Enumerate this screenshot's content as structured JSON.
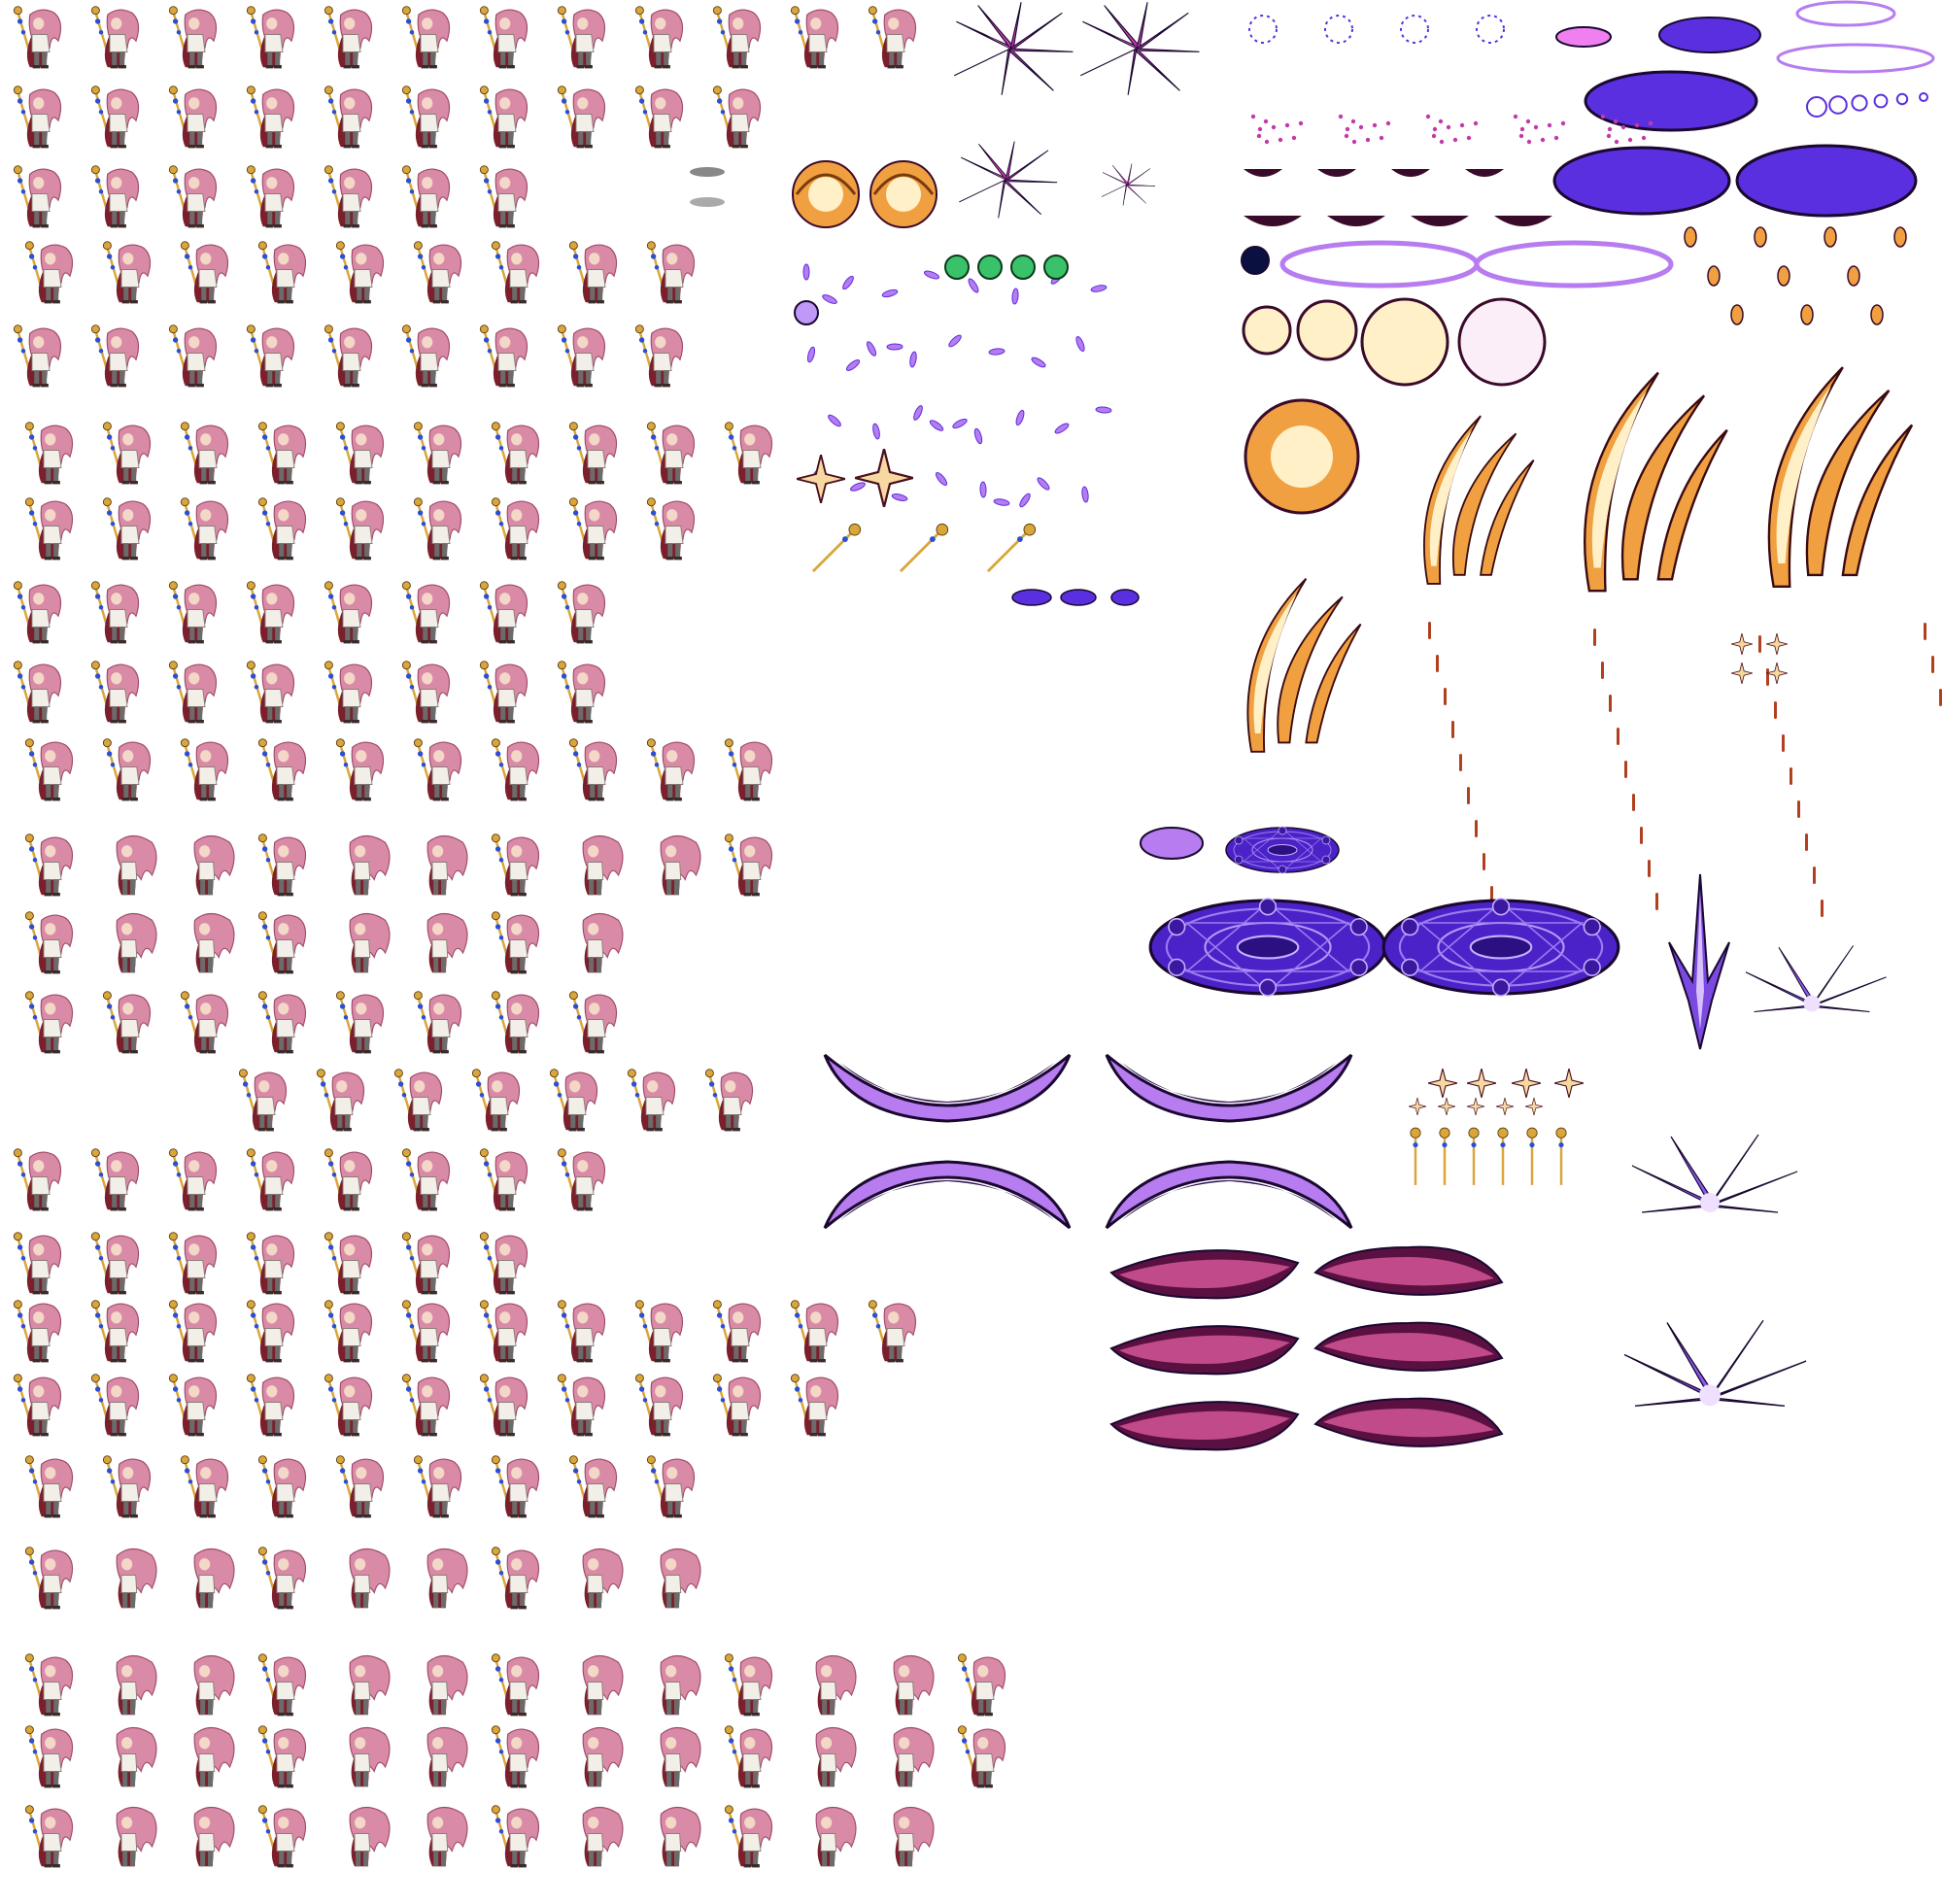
{
  "sheet": {
    "kind": "sprite-sheet",
    "background": "#ffffff",
    "character": {
      "name": "pink-haired-staff-mage",
      "palette": {
        "hair": "#d98aa6",
        "hair_dark": "#9e4a66",
        "coat": "#7a1f2b",
        "skin": "#f3d7c7",
        "armor": "#6b6b6b",
        "staff_gold": "#d9a63a",
        "staff_gem": "#2a4fd6",
        "cloth_white": "#f2eee8"
      },
      "rows": [
        {
          "frames": 12,
          "pose": "idle-staff"
        },
        {
          "frames": 10,
          "pose": "idle-staff-b"
        },
        {
          "frames": 7,
          "pose": "staff-ready"
        },
        {
          "frames": 9,
          "pose": "cast-raise"
        },
        {
          "frames": 9,
          "pose": "staff-swing"
        },
        {
          "frames": 10,
          "pose": "guard"
        },
        {
          "frames": 9,
          "pose": "hair-flow"
        },
        {
          "frames": 8,
          "pose": "dash-staff"
        },
        {
          "frames": 8,
          "pose": "thrust-staff"
        },
        {
          "frames": 10,
          "pose": "cast-point"
        },
        {
          "frames": 10,
          "pose": "idle-hair"
        },
        {
          "frames": 8,
          "pose": "stand"
        },
        {
          "frames": 8,
          "pose": "lean"
        },
        {
          "frames": 7,
          "pose": "turn"
        },
        {
          "frames": 8,
          "pose": "leap-staff"
        },
        {
          "frames": 7,
          "pose": "float"
        },
        {
          "frames": 12,
          "pose": "combo-a"
        },
        {
          "frames": 11,
          "pose": "combo-b"
        },
        {
          "frames": 9,
          "pose": "combo-c"
        },
        {
          "frames": 9,
          "pose": "recover"
        },
        {
          "frames": 13,
          "pose": "hurt-knockback"
        },
        {
          "frames": 13,
          "pose": "kneel"
        },
        {
          "frames": 12,
          "pose": "walk"
        }
      ]
    },
    "effects": {
      "colors": {
        "violet": "#5a2fe0",
        "violet_light": "#b67cf0",
        "magenta": "#c23aa8",
        "orange": "#f0a040",
        "cream": "#fff0c8",
        "dark_plum": "#3a0a2a",
        "outline": "#1a0830",
        "green": "#3ac26a"
      },
      "groups": [
        {
          "name": "star-burst-magenta"
        },
        {
          "name": "swirl-orange"
        },
        {
          "name": "sparkle-violet"
        },
        {
          "name": "magic-circle-small"
        },
        {
          "name": "violet-ovals"
        },
        {
          "name": "ring-outlines"
        },
        {
          "name": "cream-orbs"
        },
        {
          "name": "fire-splash"
        },
        {
          "name": "flame-arcs"
        },
        {
          "name": "ember-streaks"
        },
        {
          "name": "magic-circle-large"
        },
        {
          "name": "violet-crescents"
        },
        {
          "name": "plum-crescents"
        },
        {
          "name": "crystal-spike"
        },
        {
          "name": "shatter-burst"
        },
        {
          "name": "four-point-stars"
        },
        {
          "name": "mini-staffs"
        },
        {
          "name": "green-orbs"
        }
      ]
    }
  }
}
